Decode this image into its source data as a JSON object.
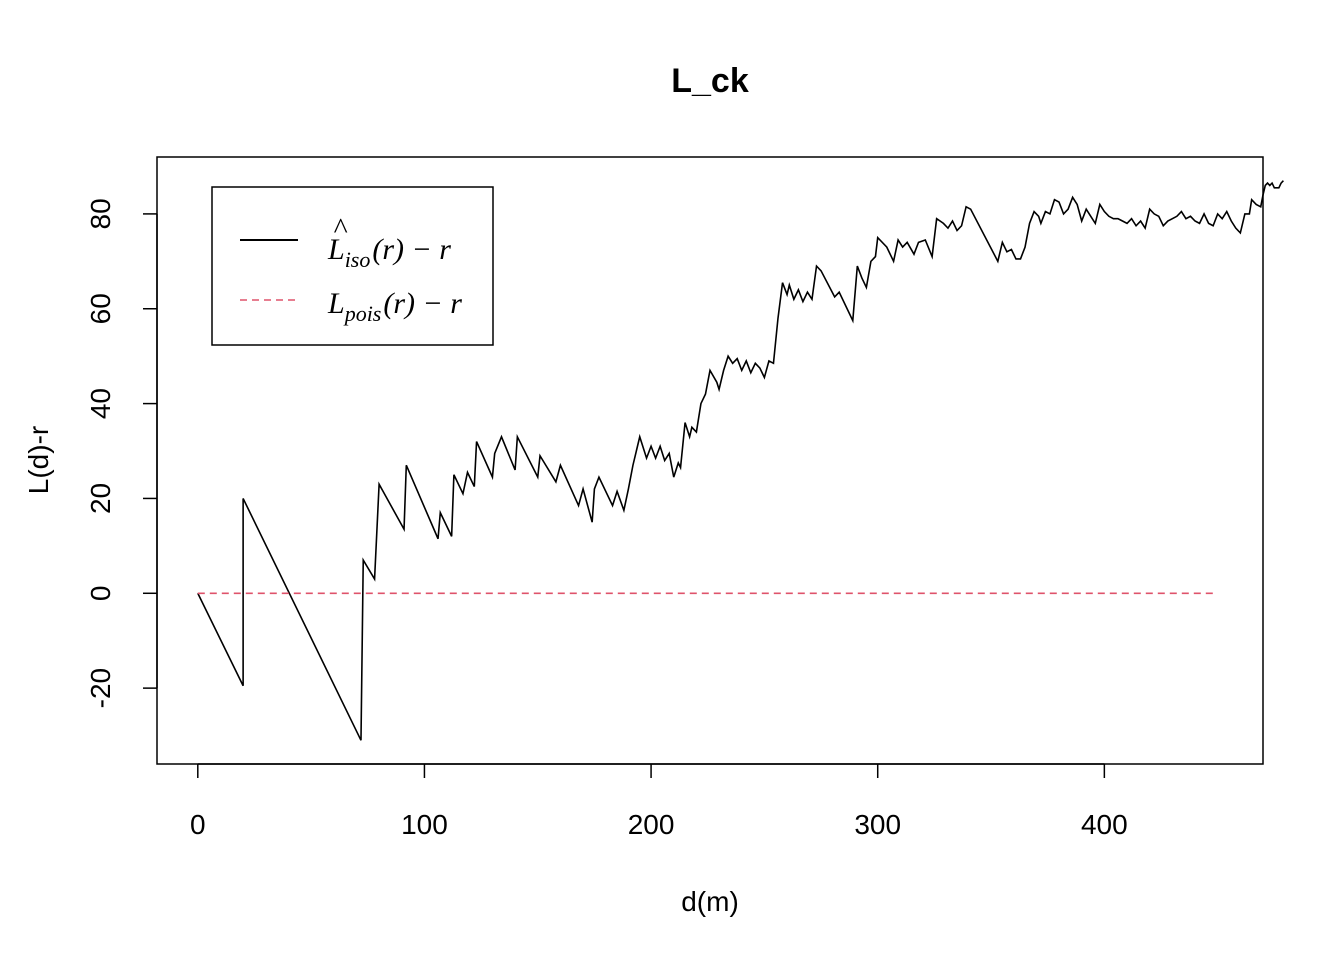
{
  "chart_data": {
    "type": "line",
    "title": "L_ck",
    "xlabel": "d(m)",
    "ylabel": "L(d)-r",
    "xlim": [
      -18,
      470
    ],
    "ylim": [
      -36,
      92
    ],
    "xticks": [
      0,
      100,
      200,
      300,
      400
    ],
    "yticks": [
      -20,
      0,
      20,
      40,
      60,
      80
    ],
    "grid": false,
    "legend_position": "top-left",
    "legend": [
      {
        "label_main": "L",
        "label_sub": "iso",
        "label_tail": "(r) − r",
        "hat": "^",
        "style": "solid",
        "color": "#000000"
      },
      {
        "label_main": "L",
        "label_sub": "pois",
        "label_tail": "(r) − r",
        "hat": "",
        "style": "dashed",
        "color": "#DF536B"
      }
    ],
    "series": [
      {
        "style": "solid",
        "color": "#000000",
        "points": [
          [
            0,
            0
          ],
          [
            20,
            -19.5
          ],
          [
            20,
            20
          ],
          [
            72,
            -31
          ],
          [
            73,
            7
          ],
          [
            78,
            3
          ],
          [
            80,
            23
          ],
          [
            91,
            13.5
          ],
          [
            92,
            27
          ],
          [
            106,
            11.5
          ],
          [
            107,
            17
          ],
          [
            112,
            12
          ],
          [
            113,
            25
          ],
          [
            117,
            21
          ],
          [
            119,
            25.5
          ],
          [
            122,
            22.5
          ],
          [
            123,
            32
          ],
          [
            130,
            24.5
          ],
          [
            131,
            29.5
          ],
          [
            134,
            33
          ],
          [
            140,
            26
          ],
          [
            141,
            33
          ],
          [
            150,
            24.5
          ],
          [
            151,
            29
          ],
          [
            158,
            23.5
          ],
          [
            160,
            27
          ],
          [
            168,
            18.5
          ],
          [
            170,
            22
          ],
          [
            174,
            15
          ],
          [
            175,
            22
          ],
          [
            177,
            24.5
          ],
          [
            183,
            18.5
          ],
          [
            185,
            21.5
          ],
          [
            188,
            17.5
          ],
          [
            190,
            22
          ],
          [
            192,
            27
          ],
          [
            195,
            33
          ],
          [
            198,
            28.5
          ],
          [
            200,
            31
          ],
          [
            202,
            28.5
          ],
          [
            204,
            31
          ],
          [
            206,
            28
          ],
          [
            208,
            29.5
          ],
          [
            210,
            24.5
          ],
          [
            212,
            27.5
          ],
          [
            213,
            26.5
          ],
          [
            215,
            36
          ],
          [
            217,
            33
          ],
          [
            218,
            35
          ],
          [
            220,
            34
          ],
          [
            222,
            40
          ],
          [
            224,
            42
          ],
          [
            226,
            47
          ],
          [
            229,
            44.5
          ],
          [
            230,
            43
          ],
          [
            232,
            47
          ],
          [
            234,
            50
          ],
          [
            236,
            48.5
          ],
          [
            238,
            49.5
          ],
          [
            240,
            47
          ],
          [
            242,
            49
          ],
          [
            244,
            46.5
          ],
          [
            246,
            48.5
          ],
          [
            248,
            47.5
          ],
          [
            250,
            45.5
          ],
          [
            252,
            49
          ],
          [
            254,
            48.5
          ],
          [
            256,
            58
          ],
          [
            258,
            65.5
          ],
          [
            260,
            63
          ],
          [
            261,
            65
          ],
          [
            263,
            62
          ],
          [
            265,
            64
          ],
          [
            267,
            61.5
          ],
          [
            269,
            63.5
          ],
          [
            271,
            62
          ],
          [
            273,
            69
          ],
          [
            275,
            68
          ],
          [
            281,
            62.5
          ],
          [
            283,
            63.5
          ],
          [
            289,
            57.5
          ],
          [
            291,
            69
          ],
          [
            293,
            66.5
          ],
          [
            295,
            64.5
          ],
          [
            297,
            70
          ],
          [
            299,
            71
          ],
          [
            300,
            75
          ],
          [
            304,
            73
          ],
          [
            307,
            70
          ],
          [
            309,
            74.5
          ],
          [
            311,
            73
          ],
          [
            313,
            74
          ],
          [
            316,
            71.5
          ],
          [
            318,
            74
          ],
          [
            321,
            74.5
          ],
          [
            324,
            71
          ],
          [
            326,
            79
          ],
          [
            329,
            78
          ],
          [
            331,
            77
          ],
          [
            333,
            78.5
          ],
          [
            335,
            76.5
          ],
          [
            337,
            77.5
          ],
          [
            339,
            81.5
          ],
          [
            341,
            81
          ],
          [
            353,
            70
          ],
          [
            355,
            74
          ],
          [
            357,
            72
          ],
          [
            359,
            72.5
          ],
          [
            361,
            70.5
          ],
          [
            363,
            70.5
          ],
          [
            365,
            73
          ],
          [
            367,
            78
          ],
          [
            369,
            80.5
          ],
          [
            371,
            79.5
          ],
          [
            372,
            78
          ],
          [
            374,
            80.5
          ],
          [
            376,
            80
          ],
          [
            378,
            83
          ],
          [
            380,
            82.5
          ],
          [
            382,
            80
          ],
          [
            384,
            81
          ],
          [
            386,
            83.5
          ],
          [
            388,
            82
          ],
          [
            390,
            78.5
          ],
          [
            392,
            81
          ],
          [
            394,
            79.5
          ],
          [
            396,
            78
          ],
          [
            398,
            82
          ],
          [
            400,
            80.5
          ],
          [
            402,
            79.5
          ],
          [
            404,
            79
          ],
          [
            406,
            79
          ],
          [
            408,
            78.5
          ],
          [
            410,
            78
          ],
          [
            412,
            79
          ],
          [
            414,
            77.5
          ],
          [
            416,
            78.5
          ],
          [
            418,
            77
          ],
          [
            420,
            81
          ],
          [
            422,
            80
          ],
          [
            424,
            79.5
          ],
          [
            426,
            77.5
          ],
          [
            428,
            78.5
          ],
          [
            430,
            79
          ],
          [
            432,
            79.5
          ],
          [
            434,
            80.5
          ],
          [
            436,
            79
          ],
          [
            438,
            79.5
          ],
          [
            440,
            78.5
          ],
          [
            442,
            78
          ],
          [
            444,
            80
          ],
          [
            446,
            78
          ],
          [
            448,
            77.5
          ],
          [
            450,
            80
          ],
          [
            452,
            79
          ],
          [
            454,
            80.5
          ],
          [
            456,
            78.5
          ],
          [
            458,
            77
          ],
          [
            460,
            76
          ],
          [
            462,
            80
          ],
          [
            464,
            80
          ],
          [
            465,
            83
          ],
          [
            467,
            82
          ],
          [
            469,
            81.5
          ],
          [
            470,
            84
          ],
          [
            471,
            86
          ],
          [
            472,
            86.5
          ],
          [
            473,
            86
          ],
          [
            474,
            86.5
          ],
          [
            475,
            85.5
          ],
          [
            477,
            85.5
          ],
          [
            478,
            86.5
          ],
          [
            479,
            87
          ]
        ]
      },
      {
        "style": "dashed",
        "color": "#DF536B",
        "points": [
          [
            0,
            0
          ],
          [
            450,
            0
          ]
        ]
      }
    ]
  }
}
